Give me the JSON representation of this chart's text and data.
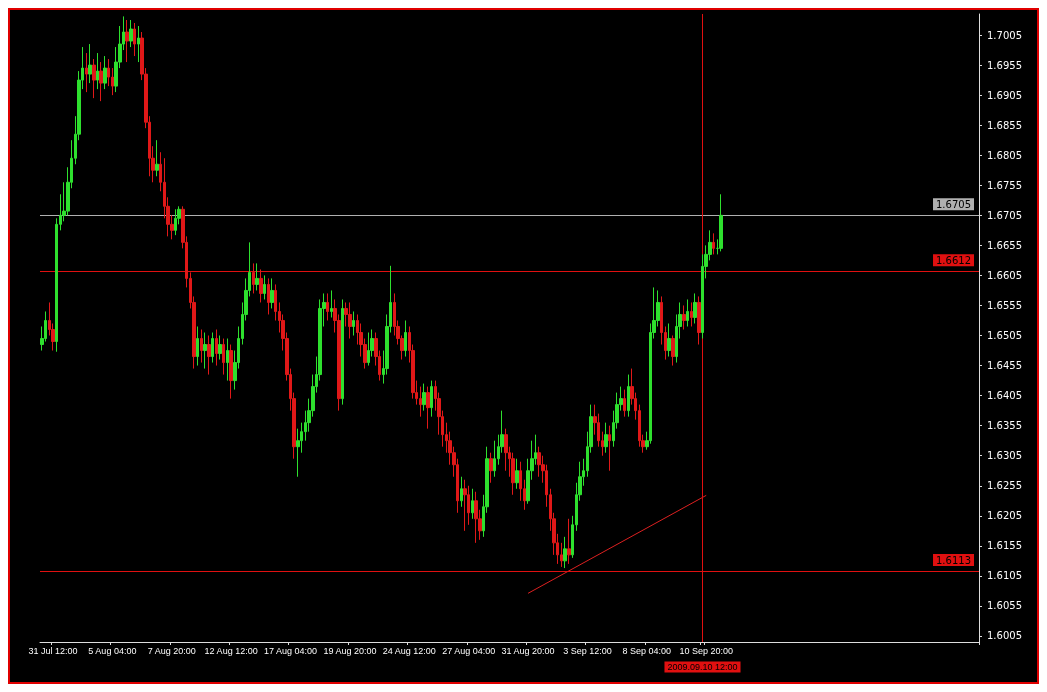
{
  "chart_data": {
    "type": "candlestick",
    "categories": [
      null,
      null,
      null,
      "31 Jul 12:00",
      null,
      null,
      null,
      null,
      null,
      null,
      null,
      null,
      null,
      null,
      null,
      null,
      null,
      null,
      null,
      "5 Aug 04:00",
      null,
      null,
      null,
      null,
      null,
      null,
      null,
      null,
      null,
      null,
      null,
      null,
      null,
      null,
      null,
      "7 Aug 20:00",
      null,
      null,
      null,
      null,
      null,
      null,
      null,
      null,
      null,
      null,
      null,
      null,
      null,
      null,
      null,
      "12 Aug 12:00",
      null,
      null,
      null,
      null,
      null,
      null,
      null,
      null,
      null,
      null,
      null,
      null,
      null,
      null,
      null,
      "17 Aug 04:00",
      null,
      null,
      null,
      null,
      null,
      null,
      null,
      null,
      null,
      null,
      null,
      null,
      null,
      null,
      null,
      "19 Aug 20:00",
      null,
      null,
      null,
      null,
      null,
      null,
      null,
      null,
      null,
      null,
      null,
      null,
      null,
      null,
      null,
      "24 Aug 12:00",
      null,
      null,
      null,
      null,
      null,
      null,
      null,
      null,
      null,
      null,
      null,
      null,
      null,
      null,
      null,
      "27 Aug 04:00",
      null,
      null,
      null,
      null,
      null,
      null,
      null,
      null,
      null,
      null,
      null,
      null,
      null,
      null,
      null,
      "31 Aug 20:00",
      null,
      null,
      null,
      null,
      null,
      null,
      null,
      null,
      null,
      null,
      null,
      null,
      null,
      null,
      null,
      "3 Sep 12:00",
      null,
      null,
      null,
      null,
      null,
      null,
      null,
      null,
      null,
      null,
      null,
      null,
      null,
      null,
      null,
      "8 Sep 04:00",
      null,
      null,
      null,
      null,
      null,
      null,
      null,
      null,
      null,
      null,
      null,
      null,
      null,
      null,
      "2009.09.10 12:00",
      "10 Sep 20:00",
      null,
      null,
      null,
      null,
      null,
      null,
      null,
      null,
      null,
      null,
      null,
      null,
      null,
      null,
      null,
      null,
      null,
      null,
      null,
      null,
      null,
      null,
      null,
      null,
      null,
      null,
      null,
      null,
      null,
      null,
      null,
      null,
      null,
      null,
      null,
      null,
      null,
      null,
      null,
      null,
      null,
      null,
      null,
      null,
      null,
      null,
      null,
      null,
      null,
      null,
      null,
      null,
      null,
      null,
      null,
      null,
      null,
      null,
      null,
      null,
      null,
      null,
      null,
      null,
      null,
      null,
      null,
      null,
      null,
      null,
      null,
      null,
      null
    ],
    "ohlc": [
      [
        1.649,
        1.652,
        1.648,
        1.65
      ],
      [
        1.65,
        1.6545,
        1.6495,
        1.653
      ],
      [
        1.653,
        1.656,
        1.6505,
        1.6515
      ],
      [
        1.6515,
        1.6525,
        1.648,
        1.6495
      ],
      [
        1.6495,
        1.67,
        1.6478,
        1.669
      ],
      [
        1.669,
        1.674,
        1.668,
        1.6705
      ],
      [
        1.6705,
        1.676,
        1.6695,
        1.6712
      ],
      [
        1.6712,
        1.6785,
        1.6705,
        1.676
      ],
      [
        1.676,
        1.683,
        1.675,
        1.68
      ],
      [
        1.68,
        1.687,
        1.679,
        1.684
      ],
      [
        1.684,
        1.6945,
        1.683,
        1.693
      ],
      [
        1.693,
        1.6985,
        1.6915,
        1.695
      ],
      [
        1.695,
        1.6975,
        1.691,
        1.694
      ],
      [
        1.694,
        1.699,
        1.6925,
        1.6955
      ],
      [
        1.6955,
        1.6965,
        1.69,
        1.693
      ],
      [
        1.693,
        1.6975,
        1.6915,
        1.6945
      ],
      [
        1.6945,
        1.696,
        1.6895,
        1.6925
      ],
      [
        1.6925,
        1.697,
        1.6915,
        1.695
      ],
      [
        1.695,
        1.6965,
        1.692,
        1.6935
      ],
      [
        1.6935,
        1.695,
        1.6905,
        1.692
      ],
      [
        1.692,
        1.6985,
        1.691,
        1.696
      ],
      [
        1.696,
        1.702,
        1.695,
        1.699
      ],
      [
        1.699,
        1.7036,
        1.698,
        1.701
      ],
      [
        1.701,
        1.703,
        1.696,
        1.6995
      ],
      [
        1.6995,
        1.703,
        1.6985,
        1.7015
      ],
      [
        1.7015,
        1.7025,
        1.697,
        1.699
      ],
      [
        1.699,
        1.702,
        1.696,
        1.7
      ],
      [
        1.7,
        1.701,
        1.693,
        1.694
      ],
      [
        1.694,
        1.695,
        1.685,
        1.686
      ],
      [
        1.686,
        1.687,
        1.677,
        1.68
      ],
      [
        1.68,
        1.682,
        1.676,
        1.678
      ],
      [
        1.678,
        1.683,
        1.677,
        1.679
      ],
      [
        1.679,
        1.681,
        1.6745,
        1.676
      ],
      [
        1.676,
        1.68,
        1.67,
        1.672
      ],
      [
        1.672,
        1.6735,
        1.667,
        1.669
      ],
      [
        1.669,
        1.6705,
        1.6665,
        1.668
      ],
      [
        1.668,
        1.6715,
        1.6672,
        1.67
      ],
      [
        1.67,
        1.672,
        1.669,
        1.6715
      ],
      [
        1.6715,
        1.672,
        1.665,
        1.666
      ],
      [
        1.666,
        1.667,
        1.6585,
        1.66
      ],
      [
        1.66,
        1.661,
        1.655,
        1.656
      ],
      [
        1.656,
        1.657,
        1.645,
        1.647
      ],
      [
        1.647,
        1.652,
        1.6455,
        1.65
      ],
      [
        1.65,
        1.6515,
        1.646,
        1.648
      ],
      [
        1.648,
        1.651,
        1.645,
        1.649
      ],
      [
        1.649,
        1.6505,
        1.644,
        1.647
      ],
      [
        1.647,
        1.651,
        1.646,
        1.65
      ],
      [
        1.65,
        1.6515,
        1.6455,
        1.6475
      ],
      [
        1.6475,
        1.6505,
        1.6465,
        1.649
      ],
      [
        1.649,
        1.65,
        1.644,
        1.646
      ],
      [
        1.646,
        1.65,
        1.643,
        1.648
      ],
      [
        1.648,
        1.649,
        1.64,
        1.643
      ],
      [
        1.643,
        1.648,
        1.6415,
        1.646
      ],
      [
        1.646,
        1.652,
        1.645,
        1.65
      ],
      [
        1.65,
        1.656,
        1.649,
        1.654
      ],
      [
        1.654,
        1.66,
        1.653,
        1.658
      ],
      [
        1.658,
        1.666,
        1.657,
        1.661
      ],
      [
        1.661,
        1.6625,
        1.6575,
        1.659
      ],
      [
        1.659,
        1.6625,
        1.658,
        1.66
      ],
      [
        1.66,
        1.6615,
        1.656,
        1.6575
      ],
      [
        1.6575,
        1.6605,
        1.6565,
        1.659
      ],
      [
        1.659,
        1.66,
        1.654,
        1.656
      ],
      [
        1.656,
        1.66,
        1.655,
        1.658
      ],
      [
        1.658,
        1.659,
        1.653,
        1.6545
      ],
      [
        1.6545,
        1.656,
        1.651,
        1.653
      ],
      [
        1.653,
        1.654,
        1.648,
        1.65
      ],
      [
        1.65,
        1.651,
        1.643,
        1.644
      ],
      [
        1.644,
        1.645,
        1.638,
        1.64
      ],
      [
        1.64,
        1.641,
        1.63,
        1.632
      ],
      [
        1.632,
        1.635,
        1.627,
        1.633
      ],
      [
        1.633,
        1.636,
        1.631,
        1.6345
      ],
      [
        1.6345,
        1.638,
        1.633,
        1.636
      ],
      [
        1.636,
        1.64,
        1.6345,
        1.638
      ],
      [
        1.638,
        1.644,
        1.637,
        1.642
      ],
      [
        1.642,
        1.647,
        1.641,
        1.644
      ],
      [
        1.644,
        1.6565,
        1.643,
        1.655
      ],
      [
        1.655,
        1.6575,
        1.652,
        1.656
      ],
      [
        1.656,
        1.6575,
        1.653,
        1.6545
      ],
      [
        1.6545,
        1.658,
        1.6535,
        1.655
      ],
      [
        1.655,
        1.6565,
        1.651,
        1.653
      ],
      [
        1.653,
        1.654,
        1.638,
        1.64
      ],
      [
        1.64,
        1.6565,
        1.639,
        1.655
      ],
      [
        1.655,
        1.656,
        1.652,
        1.654
      ],
      [
        1.654,
        1.656,
        1.65,
        1.652
      ],
      [
        1.652,
        1.6545,
        1.6505,
        1.653
      ],
      [
        1.653,
        1.654,
        1.649,
        1.651
      ],
      [
        1.651,
        1.6525,
        1.647,
        1.649
      ],
      [
        1.649,
        1.65,
        1.645,
        1.646
      ],
      [
        1.646,
        1.651,
        1.6455,
        1.648
      ],
      [
        1.648,
        1.6515,
        1.647,
        1.65
      ],
      [
        1.65,
        1.651,
        1.6455,
        1.647
      ],
      [
        1.647,
        1.648,
        1.643,
        1.644
      ],
      [
        1.644,
        1.648,
        1.6425,
        1.645
      ],
      [
        1.645,
        1.654,
        1.644,
        1.652
      ],
      [
        1.652,
        1.6621,
        1.651,
        1.656
      ],
      [
        1.656,
        1.6575,
        1.6505,
        1.652
      ],
      [
        1.652,
        1.653,
        1.649,
        1.65
      ],
      [
        1.65,
        1.6505,
        1.6465,
        1.648
      ],
      [
        1.648,
        1.653,
        1.647,
        1.651
      ],
      [
        1.651,
        1.652,
        1.646,
        1.648
      ],
      [
        1.648,
        1.649,
        1.64,
        1.641
      ],
      [
        1.641,
        1.643,
        1.639,
        1.64
      ],
      [
        1.64,
        1.642,
        1.637,
        1.639
      ],
      [
        1.639,
        1.6425,
        1.638,
        1.641
      ],
      [
        1.641,
        1.642,
        1.635,
        1.6385
      ],
      [
        1.6385,
        1.643,
        1.637,
        1.642
      ],
      [
        1.642,
        1.643,
        1.638,
        1.64
      ],
      [
        1.64,
        1.641,
        1.634,
        1.637
      ],
      [
        1.637,
        1.638,
        1.632,
        1.634
      ],
      [
        1.634,
        1.636,
        1.631,
        1.633
      ],
      [
        1.633,
        1.6345,
        1.629,
        1.631
      ],
      [
        1.631,
        1.632,
        1.627,
        1.629
      ],
      [
        1.629,
        1.63,
        1.621,
        1.623
      ],
      [
        1.623,
        1.627,
        1.622,
        1.625
      ],
      [
        1.625,
        1.6265,
        1.618,
        1.624
      ],
      [
        1.624,
        1.6255,
        1.619,
        1.621
      ],
      [
        1.621,
        1.625,
        1.62,
        1.623
      ],
      [
        1.623,
        1.6245,
        1.616,
        1.62
      ],
      [
        1.62,
        1.6215,
        1.6165,
        1.618
      ],
      [
        1.618,
        1.624,
        1.617,
        1.622
      ],
      [
        1.622,
        1.632,
        1.621,
        1.63
      ],
      [
        1.63,
        1.631,
        1.626,
        1.628
      ],
      [
        1.628,
        1.633,
        1.627,
        1.63
      ],
      [
        1.63,
        1.634,
        1.629,
        1.632
      ],
      [
        1.632,
        1.638,
        1.631,
        1.634
      ],
      [
        1.634,
        1.635,
        1.628,
        1.631
      ],
      [
        1.631,
        1.632,
        1.627,
        1.63
      ],
      [
        1.63,
        1.631,
        1.624,
        1.626
      ],
      [
        1.626,
        1.63,
        1.625,
        1.628
      ],
      [
        1.628,
        1.6295,
        1.623,
        1.625
      ],
      [
        1.625,
        1.6265,
        1.6215,
        1.623
      ],
      [
        1.623,
        1.63,
        1.6225,
        1.628
      ],
      [
        1.628,
        1.633,
        1.6265,
        1.63
      ],
      [
        1.63,
        1.634,
        1.629,
        1.631
      ],
      [
        1.631,
        1.632,
        1.627,
        1.629
      ],
      [
        1.629,
        1.6305,
        1.626,
        1.628
      ],
      [
        1.628,
        1.629,
        1.622,
        1.624
      ],
      [
        1.624,
        1.625,
        1.618,
        1.62
      ],
      [
        1.62,
        1.621,
        1.614,
        1.616
      ],
      [
        1.616,
        1.6175,
        1.6125,
        1.614
      ],
      [
        1.614,
        1.616,
        1.612,
        1.613
      ],
      [
        1.613,
        1.617,
        1.6118,
        1.615
      ],
      [
        1.615,
        1.62,
        1.6125,
        1.614
      ],
      [
        1.614,
        1.6205,
        1.6135,
        1.619
      ],
      [
        1.619,
        1.626,
        1.618,
        1.624
      ],
      [
        1.624,
        1.6295,
        1.623,
        1.627
      ],
      [
        1.627,
        1.63,
        1.6255,
        1.628
      ],
      [
        1.628,
        1.6345,
        1.627,
        1.632
      ],
      [
        1.632,
        1.639,
        1.631,
        1.637
      ],
      [
        1.637,
        1.639,
        1.634,
        1.636
      ],
      [
        1.636,
        1.6375,
        1.632,
        1.633
      ],
      [
        1.633,
        1.6345,
        1.6305,
        1.632
      ],
      [
        1.632,
        1.636,
        1.631,
        1.634
      ],
      [
        1.634,
        1.6355,
        1.628,
        1.633
      ],
      [
        1.633,
        1.638,
        1.632,
        1.636
      ],
      [
        1.636,
        1.641,
        1.635,
        1.639
      ],
      [
        1.639,
        1.642,
        1.638,
        1.64
      ],
      [
        1.64,
        1.6415,
        1.637,
        1.638
      ],
      [
        1.638,
        1.644,
        1.637,
        1.642
      ],
      [
        1.642,
        1.645,
        1.639,
        1.64
      ],
      [
        1.64,
        1.641,
        1.6365,
        1.638
      ],
      [
        1.638,
        1.639,
        1.632,
        1.633
      ],
      [
        1.633,
        1.634,
        1.631,
        1.632
      ],
      [
        1.632,
        1.6345,
        1.6315,
        1.633
      ],
      [
        1.633,
        1.6525,
        1.6325,
        1.651
      ],
      [
        1.651,
        1.6585,
        1.65,
        1.653
      ],
      [
        1.653,
        1.658,
        1.652,
        1.656
      ],
      [
        1.656,
        1.657,
        1.649,
        1.651
      ],
      [
        1.651,
        1.652,
        1.6465,
        1.648
      ],
      [
        1.648,
        1.6525,
        1.647,
        1.65
      ],
      [
        1.65,
        1.6505,
        1.6455,
        1.647
      ],
      [
        1.647,
        1.654,
        1.646,
        1.652
      ],
      [
        1.652,
        1.656,
        1.65,
        1.654
      ],
      [
        1.654,
        1.6555,
        1.6515,
        1.653
      ],
      [
        1.653,
        1.6565,
        1.652,
        1.6545
      ],
      [
        1.6545,
        1.656,
        1.652,
        1.6535
      ],
      [
        1.6535,
        1.6575,
        1.6525,
        1.656
      ],
      [
        1.656,
        1.657,
        1.649,
        1.651
      ],
      [
        1.651,
        1.664,
        1.65,
        1.662
      ],
      [
        1.662,
        1.6655,
        1.66,
        1.664
      ],
      [
        1.664,
        1.668,
        1.663,
        1.666
      ],
      [
        1.666,
        1.6675,
        1.664,
        1.665
      ],
      [
        1.665,
        1.6665,
        1.664,
        1.665
      ],
      [
        1.665,
        1.674,
        1.6645,
        1.6705
      ],
      null,
      null,
      null,
      null,
      null,
      null,
      null,
      null,
      null,
      null,
      null,
      null,
      null,
      null,
      null,
      null,
      null,
      null,
      null,
      null,
      null,
      null,
      null,
      null,
      null,
      null,
      null,
      null,
      null,
      null,
      null,
      null,
      null,
      null,
      null,
      null,
      null,
      null,
      null,
      null,
      null,
      null,
      null,
      null,
      null,
      null,
      null,
      null,
      null,
      null,
      null,
      null,
      null,
      null,
      null,
      null,
      null,
      null,
      null,
      null,
      null,
      null,
      null,
      null,
      null,
      null,
      null,
      null,
      null
    ],
    "series": [
      {
        "type": "line",
        "x": [
          "31 Aug 20:00",
          "10 Sep 20:00"
        ],
        "values": [
          1.6076,
          1.6239
        ],
        "color": "#dd2020"
      }
    ],
    "ylim": [
      1.5995,
      1.704
    ],
    "yticks": [
      1.6005,
      1.6055,
      1.6105,
      1.6155,
      1.6205,
      1.6255,
      1.6305,
      1.6355,
      1.6405,
      1.6455,
      1.6505,
      1.6555,
      1.6605,
      1.6655,
      1.6705,
      1.6755,
      1.6805,
      1.6855,
      1.6905,
      1.6955,
      1.7005
    ],
    "ref_lines": [
      {
        "axis": "y",
        "value": 1.6705,
        "label": "1.6705",
        "color": "#b0b0b0"
      },
      {
        "axis": "y",
        "value": 1.6612,
        "label": "1.6612",
        "color": "#e01010"
      },
      {
        "axis": "y",
        "value": 1.6113,
        "label": "1.6113",
        "color": "#e01010"
      },
      {
        "axis": "x",
        "value": "2009.09.10 12:00",
        "color": "#e01010"
      }
    ],
    "grid": false
  }
}
